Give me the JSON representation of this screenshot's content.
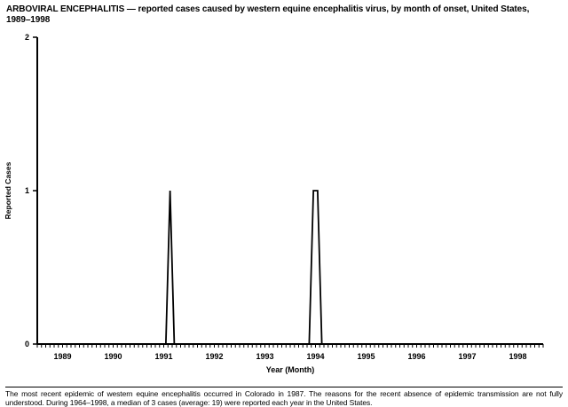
{
  "header": {
    "title_line1": "ARBOVIRAL ENCEPHALITIS — reported cases caused by western equine encephalitis virus, by month of onset, United States,",
    "title_line2": "1989–1998"
  },
  "footnote": "The most recent epidemic of western equine encephalitis occurred in Colorado in 1987. The reasons for the recent absence of epidemic transmission are not fully understood. During 1964–1998, a median of 3 cases (average: 19) were reported each year in the United States.",
  "colors": {
    "background": "#ffffff",
    "text": "#000000",
    "line": "#000000"
  },
  "chart_data": {
    "type": "line",
    "title": "ARBOVIRAL ENCEPHALITIS — reported cases caused by western equine encephalitis virus, by month of onset, United States, 1989–1998",
    "xlabel": "Year (Month)",
    "ylabel": "Reported Cases",
    "ylim": [
      0,
      2
    ],
    "yticks": [
      0,
      1,
      2
    ],
    "years": [
      1989,
      1990,
      1991,
      1992,
      1993,
      1994,
      1995,
      1996,
      1997,
      1998
    ],
    "months_per_year": 12,
    "baseline_value": 0,
    "nonzero_points": [
      {
        "year": 1991,
        "month": 8,
        "cases": 1
      },
      {
        "year": 1994,
        "month": 6,
        "cases": 1
      },
      {
        "year": 1994,
        "month": 7,
        "cases": 1
      }
    ],
    "line_color": "#000000",
    "grid": false,
    "legend": "none"
  }
}
